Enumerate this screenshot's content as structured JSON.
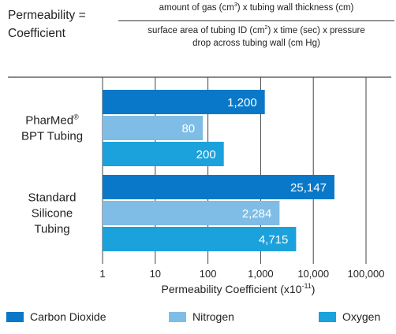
{
  "formula": {
    "lhs_line1": "Permeability =",
    "lhs_line2": "Coefficient",
    "numerator_pre": "amount of gas (cm",
    "numerator_sup": "3",
    "numerator_post": ") x tubing wall thickness (cm)",
    "denominator_l1_pre": "surface area of tubing ID (cm",
    "denominator_l1_sup": "2",
    "denominator_l1_post": ") x time (sec) x pressure",
    "denominator_l2": "drop across tubing wall (cm Hg)"
  },
  "chart_data": {
    "type": "bar",
    "orientation": "horizontal",
    "x_scale": "log",
    "xlim": [
      1,
      100000
    ],
    "xlabel": "Permeability Coefficient (x10",
    "xlabel_sup": "-11",
    "xlabel_close": ")",
    "x_ticks": [
      {
        "value": 1,
        "label": "1"
      },
      {
        "value": 10,
        "label": "10"
      },
      {
        "value": 100,
        "label": "100"
      },
      {
        "value": 1000,
        "label": "1,000"
      },
      {
        "value": 10000,
        "label": "10,000"
      },
      {
        "value": 100000,
        "label": "100,000"
      }
    ],
    "grid": true,
    "legend_position": "bottom",
    "categories": [
      {
        "lines": [
          "PharMed",
          "BPT Tubing"
        ],
        "superscript": "®"
      },
      {
        "lines": [
          "Standard",
          "Silicone",
          "Tubing"
        ],
        "superscript": ""
      }
    ],
    "series": [
      {
        "name": "Carbon Dioxide",
        "color": "#0a78c8",
        "values": [
          1200,
          25147
        ],
        "labels": [
          "1,200",
          "25,147"
        ]
      },
      {
        "name": "Nitrogen",
        "color": "#7fbde6",
        "values": [
          80,
          2284
        ],
        "labels": [
          "80",
          "2,284"
        ]
      },
      {
        "name": "Oxygen",
        "color": "#1ba1dc",
        "values": [
          200,
          4715
        ],
        "labels": [
          "200",
          "4,715"
        ]
      }
    ]
  }
}
